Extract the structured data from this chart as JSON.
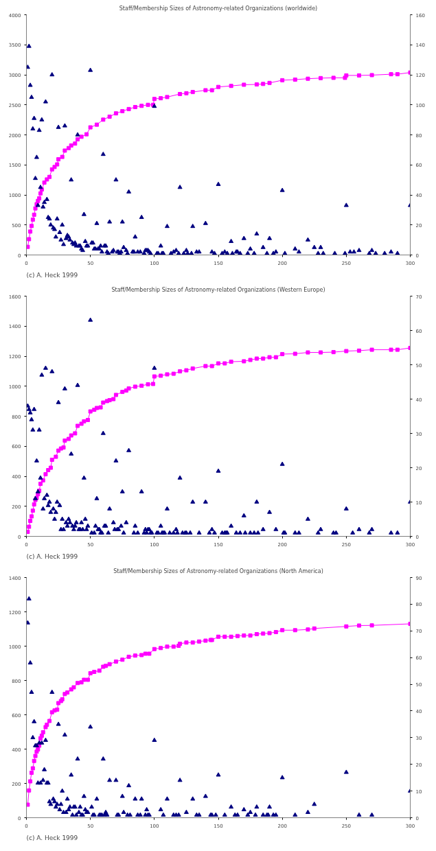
{
  "chart_data": [
    {
      "type": "scatter",
      "title": "Staff/Membership Sizes of Astronomy-related Organizations (worldwide)",
      "annotations": [
        "(c) A. Heck 1999"
      ],
      "xlim": [
        0,
        300
      ],
      "xticks": [
        0,
        50,
        100,
        150,
        200,
        250,
        300
      ],
      "ylim": [
        0,
        4000
      ],
      "yticks": [
        0,
        500,
        1000,
        1500,
        2000,
        2500,
        3000,
        3500,
        4000
      ],
      "y2lim": [
        0,
        160
      ],
      "y2ticks": [
        0,
        20,
        40,
        60,
        80,
        100,
        120,
        140,
        160
      ],
      "grid": false,
      "series": [
        {
          "type": "line",
          "marker": "square",
          "color": "#ff00ff",
          "x": [
            1,
            2,
            3,
            4,
            5,
            6,
            7,
            8,
            9,
            10,
            11,
            12,
            14,
            16,
            18,
            20,
            22,
            24,
            25,
            28,
            30,
            33,
            35,
            38,
            40,
            43,
            47,
            50,
            55,
            60,
            65,
            70,
            75,
            80,
            85,
            90,
            95,
            99,
            100,
            105,
            110,
            120,
            125,
            130,
            140,
            145,
            150,
            160,
            170,
            180,
            185,
            190,
            200,
            210,
            220,
            230,
            240,
            249,
            250,
            260,
            270,
            285,
            290,
            300
          ],
          "values": [
            135,
            263,
            390,
            483,
            588,
            670,
            775,
            845,
            900,
            943,
            1025,
            1090,
            1205,
            1258,
            1300,
            1425,
            1465,
            1508,
            1593,
            1633,
            1738,
            1780,
            1823,
            1855,
            1925,
            1968,
            2010,
            2125,
            2170,
            2253,
            2303,
            2358,
            2395,
            2430,
            2463,
            2483,
            2500,
            2500,
            2598,
            2610,
            2630,
            2680,
            2693,
            2713,
            2743,
            2743,
            2798,
            2815,
            2835,
            2840,
            2848,
            2865,
            2910,
            2920,
            2935,
            2945,
            2950,
            2950,
            2990,
            2990,
            2995,
            3010,
            3010,
            3038
          ]
        },
        {
          "marker": "triangle",
          "color": "#000080",
          "axis": "y2",
          "x": [
            1,
            2,
            3,
            4,
            5,
            6,
            7,
            8,
            9,
            10,
            11,
            12,
            13,
            14,
            15,
            16,
            17,
            18,
            19,
            20,
            21,
            22,
            23,
            24,
            25,
            26,
            27,
            28,
            29,
            30,
            31,
            32,
            33,
            34,
            35,
            36,
            37,
            38,
            39,
            40,
            41,
            42,
            43,
            44,
            45,
            46,
            47,
            48,
            50,
            51,
            52,
            53,
            54,
            55,
            56,
            57,
            58,
            59,
            60,
            61,
            62,
            63,
            64,
            65,
            67,
            68,
            70,
            71,
            72,
            73,
            74,
            75,
            76,
            78,
            79,
            80,
            83,
            84,
            85,
            87,
            89,
            90,
            92,
            93,
            94,
            95,
            96,
            97,
            100,
            102,
            103,
            105,
            106,
            107,
            110,
            113,
            115,
            117,
            119,
            120,
            123,
            125,
            126,
            129,
            130,
            133,
            135,
            140,
            145,
            147,
            150,
            153,
            155,
            157,
            160,
            161,
            164,
            165,
            167,
            170,
            173,
            175,
            178,
            180,
            185,
            188,
            190,
            193,
            195,
            200,
            202,
            210,
            213,
            220,
            225,
            228,
            230,
            232,
            241,
            249,
            250,
            253,
            256,
            260,
            268,
            270,
            273,
            280,
            285,
            290,
            300
          ],
          "values": [
            125,
            139,
            113,
            105,
            84,
            91,
            51,
            65,
            33,
            83,
            45,
            90,
            32,
            35,
            102,
            37,
            25,
            24,
            20,
            120,
            18,
            17,
            12,
            24,
            85,
            15,
            10,
            20,
            7,
            86,
            11,
            13,
            12,
            10,
            50,
            8,
            7,
            8,
            6,
            80,
            6,
            6,
            4,
            3,
            27,
            9,
            6,
            6,
            123,
            8,
            8,
            4,
            4,
            21,
            4,
            4,
            6,
            2,
            67,
            6,
            6,
            2,
            1,
            22,
            2,
            3,
            50,
            2,
            2,
            1,
            2,
            22,
            5,
            3,
            1,
            42,
            2,
            2,
            12,
            2,
            2,
            25,
            1,
            3,
            3,
            3,
            2,
            1,
            99,
            1,
            1,
            6,
            1,
            1,
            19,
            1,
            2,
            3,
            1,
            45,
            1,
            3,
            1,
            1,
            19,
            2,
            2,
            21,
            2,
            1,
            47,
            1,
            2,
            1,
            9,
            1,
            2,
            2,
            1,
            11,
            1,
            4,
            1,
            14,
            5,
            1,
            11,
            1,
            2,
            43,
            1,
            4,
            2,
            10,
            5,
            1,
            5,
            1,
            1,
            1,
            33,
            2,
            2,
            3,
            1,
            3,
            1,
            1,
            2,
            1,
            33
          ]
        }
      ]
    },
    {
      "type": "scatter",
      "title": "Staff/Membership Sizes of Astronomy-related Organizations (Western Europe)",
      "annotations": [
        "(c) A. Heck 1999"
      ],
      "xlim": [
        0,
        300
      ],
      "xticks": [
        0,
        50,
        100,
        150,
        200,
        250,
        300
      ],
      "ylim": [
        0,
        1600
      ],
      "yticks": [
        0,
        200,
        400,
        600,
        800,
        1000,
        1200,
        1400,
        1600
      ],
      "y2lim": [
        0,
        70
      ],
      "y2ticks": [
        0,
        10,
        20,
        30,
        40,
        50,
        60,
        70
      ],
      "grid": false,
      "series": [
        {
          "type": "line",
          "marker": "square",
          "color": "#ff00ff",
          "x": [
            1,
            2,
            3,
            4,
            5,
            6,
            7,
            8,
            9,
            10,
            11,
            13,
            15,
            17,
            19,
            20,
            23,
            25,
            27,
            29,
            30,
            33,
            35,
            38,
            40,
            43,
            45,
            48,
            50,
            53,
            55,
            58,
            60,
            63,
            65,
            68,
            70,
            75,
            78,
            80,
            85,
            90,
            95,
            99,
            100,
            105,
            110,
            115,
            120,
            125,
            130,
            140,
            145,
            150,
            155,
            160,
            170,
            175,
            180,
            185,
            190,
            195,
            200,
            210,
            220,
            230,
            240,
            250,
            260,
            270,
            285,
            290,
            300
          ],
          "values": [
            30,
            64,
            103,
            133,
            171,
            213,
            242,
            256,
            281,
            304,
            350,
            373,
            414,
            441,
            457,
            510,
            530,
            571,
            585,
            592,
            638,
            649,
            672,
            686,
            736,
            750,
            766,
            775,
            832,
            843,
            855,
            859,
            891,
            901,
            907,
            914,
            942,
            962,
            971,
            985,
            997,
            1003,
            1013,
            1015,
            1065,
            1070,
            1079,
            1083,
            1099,
            1106,
            1118,
            1134,
            1134,
            1152,
            1152,
            1163,
            1166,
            1175,
            1184,
            1184,
            1193,
            1193,
            1214,
            1216,
            1225,
            1225,
            1227,
            1234,
            1237,
            1243,
            1243,
            1243,
            1255
          ]
        },
        {
          "marker": "triangle",
          "color": "#000080",
          "axis": "y2",
          "x": [
            1,
            2,
            3,
            4,
            5,
            6,
            7,
            8,
            9,
            10,
            11,
            12,
            13,
            14,
            15,
            16,
            17,
            18,
            19,
            20,
            21,
            22,
            23,
            24,
            25,
            26,
            27,
            28,
            29,
            30,
            31,
            32,
            33,
            34,
            35,
            36,
            37,
            38,
            39,
            40,
            41,
            42,
            43,
            44,
            45,
            46,
            47,
            48,
            50,
            51,
            53,
            54,
            55,
            56,
            57,
            58,
            59,
            60,
            61,
            62,
            64,
            65,
            68,
            69,
            70,
            71,
            72,
            74,
            75,
            76,
            78,
            80,
            84,
            85,
            87,
            90,
            92,
            93,
            94,
            95,
            96,
            97,
            98,
            100,
            102,
            103,
            105,
            106,
            107,
            108,
            110,
            112,
            115,
            117,
            118,
            120,
            122,
            124,
            125,
            128,
            130,
            135,
            140,
            143,
            145,
            147,
            150,
            153,
            155,
            156,
            157,
            160,
            164,
            167,
            170,
            171,
            175,
            178,
            180,
            181,
            185,
            190,
            195,
            200,
            201,
            202,
            210,
            213,
            220,
            228,
            230,
            240,
            242,
            250,
            255,
            260,
            268,
            270,
            285,
            290,
            300
          ],
          "values": [
            38,
            37,
            36,
            34,
            31,
            37,
            11,
            22,
            13,
            31,
            17,
            47,
            8,
            11,
            49,
            12,
            9,
            10,
            7,
            48,
            8,
            5,
            7,
            10,
            39,
            9,
            2,
            5,
            2,
            43,
            4,
            3,
            5,
            4,
            24,
            3,
            2,
            3,
            4,
            44,
            2,
            2,
            4,
            2,
            17,
            5,
            2,
            3,
            63,
            1,
            1,
            3,
            11,
            2,
            2,
            1,
            1,
            30,
            3,
            3,
            1,
            8,
            4,
            2,
            22,
            2,
            2,
            3,
            13,
            1,
            4,
            25,
            1,
            3,
            1,
            13,
            1,
            2,
            1,
            2,
            2,
            1,
            1,
            49,
            1,
            1,
            3,
            1,
            1,
            1,
            8,
            1,
            1,
            2,
            1,
            17,
            1,
            1,
            1,
            1,
            10,
            1,
            10,
            1,
            2,
            1,
            19,
            1,
            1,
            1,
            1,
            3,
            1,
            1,
            6,
            1,
            1,
            1,
            10,
            1,
            2,
            7,
            2,
            21,
            1,
            1,
            1,
            1,
            5,
            1,
            2,
            1,
            1,
            8,
            1,
            2,
            1,
            2,
            1,
            1,
            10
          ]
        }
      ]
    },
    {
      "type": "scatter",
      "title": "Staff/Membership Sizes of Astronomy-related Organizations (North America)",
      "annotations": [
        "(c) A. Heck 1999"
      ],
      "xlim": [
        0,
        300
      ],
      "xticks": [
        0,
        50,
        100,
        150,
        200,
        250,
        300
      ],
      "ylim": [
        0,
        1400
      ],
      "yticks": [
        0,
        200,
        400,
        600,
        800,
        1000,
        1200,
        1400
      ],
      "y2lim": [
        0,
        90
      ],
      "y2ticks": [
        0,
        10,
        20,
        30,
        40,
        50,
        60,
        70,
        80,
        90
      ],
      "grid": false,
      "series": [
        {
          "type": "line",
          "marker": "square",
          "color": "#ff00ff",
          "x": [
            1,
            2,
            3,
            4,
            5,
            6,
            7,
            8,
            9,
            10,
            11,
            12,
            13,
            15,
            16,
            18,
            20,
            22,
            24,
            25,
            27,
            28,
            30,
            32,
            35,
            37,
            40,
            43,
            45,
            48,
            50,
            53,
            57,
            60,
            62,
            65,
            70,
            75,
            80,
            85,
            90,
            93,
            96,
            100,
            105,
            110,
            115,
            119,
            120,
            125,
            130,
            135,
            140,
            144,
            145,
            150,
            155,
            160,
            165,
            170,
            175,
            180,
            185,
            190,
            195,
            200,
            210,
            220,
            225,
            250,
            260,
            270,
            300
          ],
          "values": [
            76,
            159,
            212,
            262,
            288,
            331,
            360,
            385,
            398,
            420,
            463,
            478,
            498,
            528,
            542,
            564,
            615,
            625,
            630,
            668,
            680,
            690,
            721,
            730,
            748,
            760,
            785,
            789,
            804,
            804,
            842,
            850,
            857,
            880,
            885,
            895,
            910,
            921,
            938,
            945,
            948,
            956,
            956,
            983,
            989,
            997,
            997,
            1002,
            1014,
            1021,
            1021,
            1027,
            1032,
            1036,
            1036,
            1055,
            1055,
            1055,
            1059,
            1062,
            1062,
            1070,
            1073,
            1076,
            1082,
            1093,
            1093,
            1097,
            1103,
            1115,
            1120,
            1121,
            1130
          ]
        },
        {
          "marker": "triangle",
          "color": "#000080",
          "axis": "y2",
          "x": [
            1,
            2,
            3,
            4,
            5,
            6,
            7,
            8,
            9,
            10,
            11,
            12,
            13,
            14,
            15,
            16,
            17,
            18,
            19,
            20,
            21,
            22,
            23,
            24,
            25,
            26,
            27,
            28,
            29,
            30,
            31,
            32,
            33,
            34,
            35,
            36,
            37,
            38,
            39,
            40,
            41,
            42,
            43,
            44,
            45,
            46,
            47,
            48,
            50,
            51,
            52,
            53,
            55,
            57,
            58,
            59,
            60,
            61,
            62,
            63,
            65,
            70,
            71,
            72,
            75,
            76,
            79,
            80,
            81,
            85,
            87,
            89,
            90,
            93,
            94,
            95,
            96,
            100,
            105,
            107,
            110,
            115,
            117,
            119,
            120,
            125,
            130,
            133,
            135,
            140,
            144,
            145,
            148,
            150,
            155,
            160,
            163,
            165,
            170,
            173,
            175,
            179,
            180,
            185,
            188,
            189,
            190,
            193,
            195,
            200,
            210,
            220,
            225,
            250,
            260,
            270,
            300
          ],
          "values": [
            73,
            82,
            58,
            47,
            30,
            36,
            27,
            27,
            13,
            28,
            13,
            28,
            14,
            18,
            29,
            13,
            13,
            6,
            5,
            47,
            7,
            6,
            4,
            5,
            35,
            3,
            5,
            10,
            2,
            31,
            2,
            7,
            3,
            4,
            16,
            1,
            4,
            4,
            1,
            22,
            2,
            4,
            1,
            1,
            8,
            3,
            2,
            2,
            34,
            4,
            1,
            1,
            7,
            1,
            1,
            1,
            22,
            1,
            2,
            1,
            14,
            14,
            1,
            1,
            8,
            2,
            1,
            12,
            1,
            7,
            1,
            1,
            7,
            1,
            3,
            1,
            1,
            29,
            3,
            1,
            7,
            1,
            1,
            1,
            14,
            2,
            7,
            1,
            1,
            8,
            1,
            1,
            1,
            16,
            1,
            4,
            1,
            1,
            3,
            1,
            2,
            1,
            4,
            1,
            1,
            1,
            4,
            1,
            1,
            15,
            1,
            2,
            5,
            17,
            1,
            1,
            10
          ]
        }
      ]
    }
  ]
}
